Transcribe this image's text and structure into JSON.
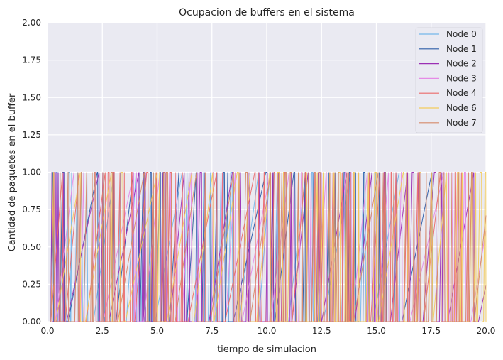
{
  "chart_data": {
    "type": "line",
    "title": "Ocupacion de buffers en el sistema",
    "xlabel": "tiempo de simulacion",
    "ylabel": "Cantidad de paquetes en el buffer",
    "xlim": [
      0.0,
      20.0
    ],
    "ylim": [
      0.0,
      2.0
    ],
    "xticks": [
      0.0,
      2.5,
      5.0,
      7.5,
      10.0,
      12.5,
      15.0,
      17.5,
      20.0
    ],
    "xtick_labels": [
      "0.0",
      "2.5",
      "5.0",
      "7.5",
      "10.0",
      "12.5",
      "15.0",
      "17.5",
      "20.0"
    ],
    "yticks": [
      0.0,
      0.25,
      0.5,
      0.75,
      1.0,
      1.25,
      1.5,
      1.75,
      2.0
    ],
    "ytick_labels": [
      "0.00",
      "0.25",
      "0.50",
      "0.75",
      "1.00",
      "1.25",
      "1.50",
      "1.75",
      "2.00"
    ],
    "grid": true,
    "legend_position": "top-right",
    "series": [
      {
        "name": "Node 0",
        "color": "#74b7ea",
        "seed": 11,
        "n_events": 34
      },
      {
        "name": "Node 1",
        "color": "#2c5ca8",
        "seed": 23,
        "n_events": 36
      },
      {
        "name": "Node 2",
        "color": "#9b2fb4",
        "seed": 37,
        "n_events": 40
      },
      {
        "name": "Node 3",
        "color": "#e58be6",
        "seed": 41,
        "n_events": 42
      },
      {
        "name": "Node 4",
        "color": "#eb6a6a",
        "seed": 53,
        "n_events": 44
      },
      {
        "name": "Node 6",
        "color": "#f3cc5c",
        "seed": 67,
        "n_events": 46
      },
      {
        "name": "Node 7",
        "color": "#d68a6a",
        "seed": 79,
        "n_events": 56
      }
    ]
  }
}
